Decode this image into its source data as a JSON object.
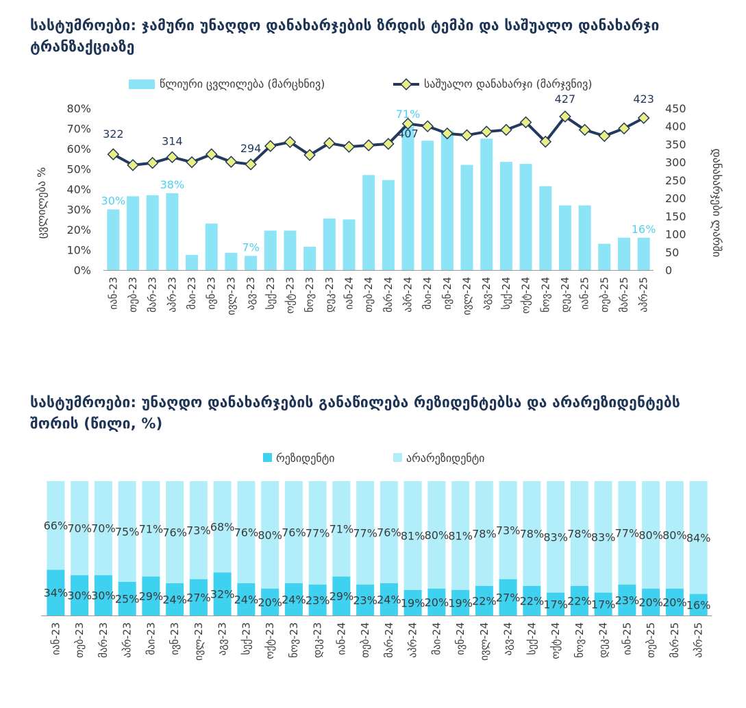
{
  "colors": {
    "bar": "#8de4f7",
    "line": "#23395d",
    "marker": "#e9ef84",
    "highlight": "#4fd0ef",
    "resident": "#3fd1f0",
    "nonresident": "#b2eef9",
    "title": "#1f3556"
  },
  "chart_data": [
    {
      "type": "bar+line",
      "title": "სასტუმროები: ჯამური უნაღდო დანახარჯების ზრდის ტემპი და საშუალო დანახარჯი ტრანზაქციაზე",
      "categories": [
        "იან-23",
        "თებ-23",
        "მარ-23",
        "აპრ-23",
        "მაი-23",
        "ივნ-23",
        "ივლ-23",
        "აგვ-23",
        "სექ-23",
        "ოქტ-23",
        "ნოვ-23",
        "დეკ-23",
        "იან-24",
        "თებ-24",
        "მარ-24",
        "აპრ-24",
        "მაი-24",
        "ივნ-24",
        "ივლ-24",
        "აგვ-24",
        "სექ-24",
        "ოქტ-24",
        "ნოვ-24",
        "დეკ-24",
        "იან-25",
        "თებ-25",
        "მარ-25",
        "აპრ-25"
      ],
      "series": [
        {
          "name": "წლიური ცვლილება (მარცხნივ)",
          "type": "bar",
          "axis": "left",
          "unit": "%",
          "values": [
            30,
            36.5,
            37,
            38,
            7.5,
            23,
            8.5,
            7,
            19.5,
            19.5,
            11.5,
            25.5,
            25,
            47,
            44.5,
            71,
            64,
            69,
            52,
            65,
            53.5,
            52.5,
            41.5,
            32,
            32,
            13,
            16,
            16
          ]
        },
        {
          "name": "საშუალო დანახარჯი (მარჯვნივ)",
          "type": "line",
          "axis": "right",
          "values": [
            322,
            292,
            298,
            314,
            300,
            322,
            301,
            294,
            345,
            356,
            320,
            353,
            343,
            347,
            351,
            407,
            400,
            380,
            375,
            385,
            390,
            411,
            357,
            427,
            390,
            373,
            394,
            423
          ]
        }
      ],
      "labels": {
        "bar_highlight": [
          "30%",
          "38%",
          "7%",
          "71%",
          "16%"
        ],
        "line_highlight": [
          "322",
          "314",
          "294",
          "407",
          "427",
          "423"
        ]
      },
      "left_axis": {
        "label": "ცვლილება %",
        "ticks": [
          "0%",
          "10%",
          "20%",
          "30%",
          "40%",
          "50%",
          "60%",
          "70%",
          "80%"
        ],
        "range": [
          0,
          80
        ]
      },
      "right_axis": {
        "label": "დანახარჯები ლარში",
        "ticks": [
          "0",
          "50",
          "100",
          "150",
          "200",
          "250",
          "300",
          "350",
          "400",
          "450"
        ],
        "range": [
          0,
          450
        ]
      },
      "legend": "top-center"
    },
    {
      "type": "stacked-bar",
      "title": "სასტუმროები: უნაღდო დანახარჯების განაწილება რეზიდენტებსა და არარეზიდენტებს შორის (წილი, %)",
      "categories": [
        "იან-23",
        "თებ-23",
        "მარ-23",
        "აპრ-23",
        "მაი-23",
        "ივნ-23",
        "ივლ-23",
        "აგვ-23",
        "სექ-23",
        "ოქტ-23",
        "ნოვ-23",
        "დეკ-23",
        "იან-24",
        "თებ-24",
        "მარ-24",
        "აპრ-24",
        "მაი-24",
        "ივნ-24",
        "ივლ-24",
        "აგვ-24",
        "სექ-24",
        "ოქტ-24",
        "ნოვ-24",
        "დეკ-24",
        "იან-25",
        "თებ-25",
        "მარ-25",
        "აპრ-25"
      ],
      "series": [
        {
          "name": "რეზიდენტი",
          "values": [
            34,
            30,
            30,
            25,
            29,
            24,
            27,
            32,
            24,
            20,
            24,
            23,
            29,
            23,
            24,
            19,
            20,
            19,
            22,
            27,
            22,
            17,
            22,
            17,
            23,
            20,
            20,
            16
          ]
        },
        {
          "name": "არარეზიდენტი",
          "values": [
            66,
            70,
            70,
            75,
            71,
            76,
            73,
            68,
            76,
            80,
            76,
            77,
            71,
            77,
            76,
            81,
            80,
            81,
            78,
            73,
            78,
            83,
            78,
            83,
            77,
            80,
            80,
            84
          ]
        }
      ],
      "unit": "%",
      "ylim": [
        0,
        100
      ],
      "legend": "top-center"
    }
  ]
}
